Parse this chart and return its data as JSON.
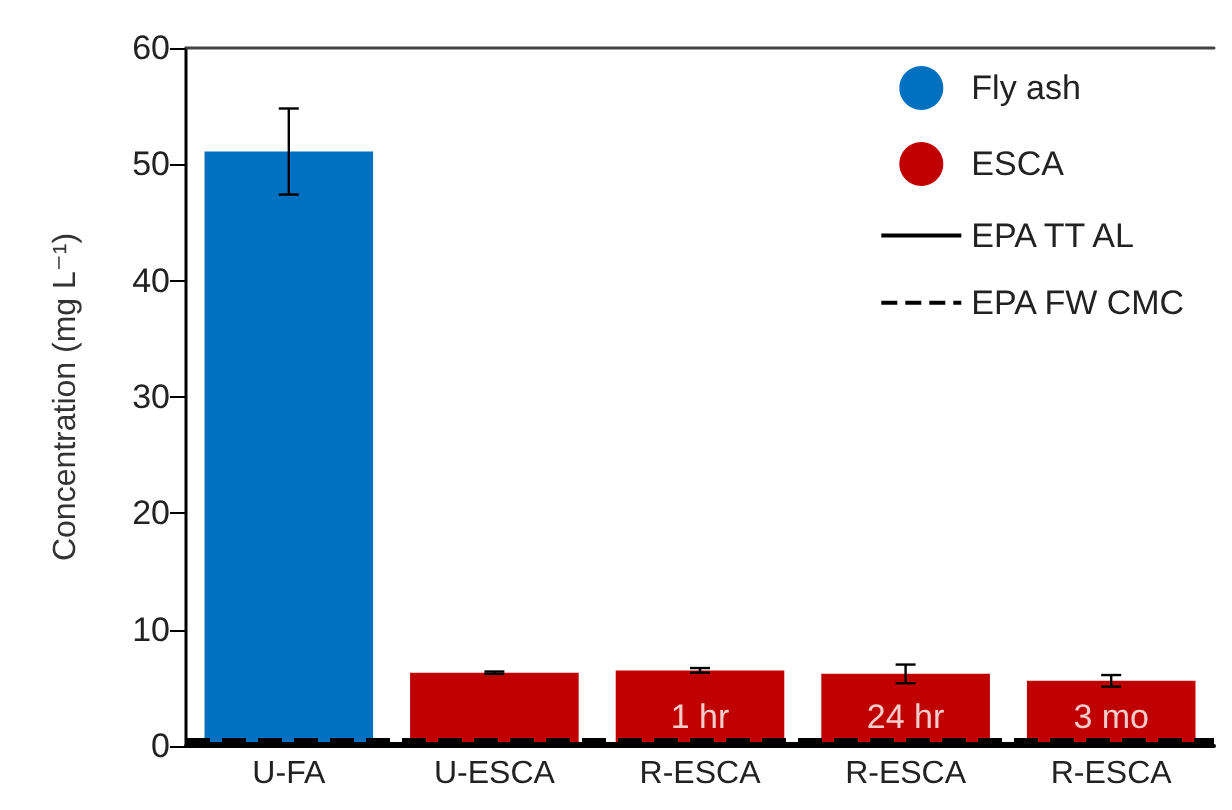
{
  "chart_data": {
    "type": "bar",
    "ylabel": "Concentration (mg L⁻¹)",
    "categories": [
      "U-FA",
      "U-ESCA",
      "R-ESCA",
      "R-ESCA",
      "R-ESCA"
    ],
    "series": [
      {
        "name": "Fly ash",
        "color": "#0070c0",
        "values": [
          51.1,
          null,
          null,
          null,
          null
        ],
        "errors": [
          3.7,
          null,
          null,
          null,
          null
        ]
      },
      {
        "name": "ESCA",
        "color": "#c00000",
        "values": [
          null,
          6.3,
          6.5,
          6.2,
          5.6
        ],
        "errors": [
          null,
          0.1,
          0.2,
          0.8,
          0.5
        ]
      }
    ],
    "annotations": [
      "1 hr",
      "24 hr",
      "3 mo"
    ],
    "ylim": [
      0,
      60
    ],
    "yticks": [
      0,
      10,
      20,
      30,
      40,
      50,
      60
    ],
    "grid": false,
    "legend": "top right",
    "ref_lines": [
      {
        "axis": "y",
        "value": 0.2,
        "label": "EPA TT AL",
        "color": "#000000",
        "line_style": "solid"
      },
      {
        "axis": "y",
        "value": 0.5,
        "label": "EPA FW CMC",
        "color": "#000000",
        "line_style": "dashed"
      }
    ]
  }
}
